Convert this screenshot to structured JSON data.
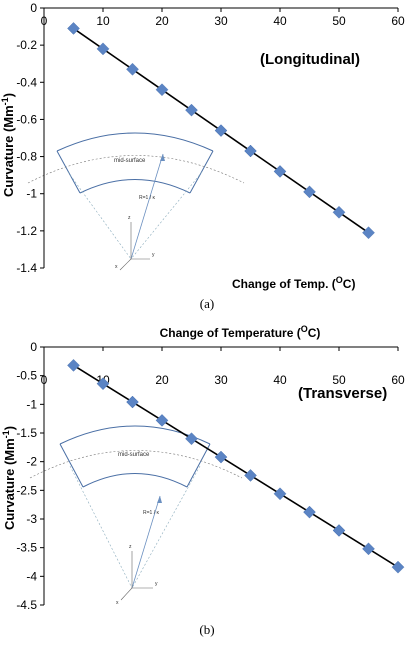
{
  "chart_data": [
    {
      "type": "scatter",
      "title": "",
      "xlabel": "Change of Temp. (",
      "xlabel_sup": "O",
      "xlabel_end": "C)",
      "ylabel": "Curvature (Mm",
      "ylabel_sup": "-1",
      "ylabel_end": ")",
      "annotation": "(Longitudinal)",
      "caption": "(a)",
      "xlim": [
        0,
        60
      ],
      "ylim": [
        -1.4,
        0
      ],
      "x_ticks": [
        0,
        10,
        20,
        30,
        40,
        50,
        60
      ],
      "y_ticks": [
        0,
        -0.2,
        -0.4,
        -0.6,
        -0.8,
        -1,
        -1.2,
        -1.4
      ],
      "x_tick_labels": [
        "0",
        "10",
        "20",
        "30",
        "40",
        "50",
        "60"
      ],
      "y_tick_labels": [
        "0",
        "-0.2",
        "-0.4",
        "-0.6",
        "-0.8",
        "-1",
        "-1.2",
        "-1.4"
      ],
      "x": [
        5,
        10,
        15,
        20,
        25,
        30,
        35,
        40,
        45,
        50,
        55
      ],
      "y": [
        -0.11,
        -0.22,
        -0.33,
        -0.44,
        -0.55,
        -0.66,
        -0.77,
        -0.88,
        -0.99,
        -1.1,
        -1.21
      ],
      "inset": {
        "label_mid": "mid-surface",
        "label_r": "R=1 / κ",
        "axis_z": "z",
        "axis_y": "y",
        "axis_x": "x"
      },
      "marker_color": "#5b84c4",
      "line_color": "#000000"
    },
    {
      "type": "scatter",
      "title": "Change of Temperature (",
      "title_sup": "O",
      "title_end": "C)",
      "xlabel": "",
      "ylabel": "Curvature (Mm",
      "ylabel_sup": "-1",
      "ylabel_end": ")",
      "annotation": "(Transverse)",
      "caption": "(b)",
      "xlim": [
        0,
        60
      ],
      "ylim": [
        -4.5,
        0
      ],
      "x_ticks": [
        0,
        10,
        20,
        30,
        40,
        50,
        60
      ],
      "y_ticks": [
        0,
        -0.5,
        -1,
        -1.5,
        -2,
        -2.5,
        -3,
        -3.5,
        -4,
        -4.5
      ],
      "x_tick_labels": [
        "0",
        "10",
        "20",
        "30",
        "40",
        "50",
        "60"
      ],
      "y_tick_labels": [
        "0",
        "-0.5",
        "-1",
        "-1.5",
        "-2",
        "-2.5",
        "-3",
        "-3.5",
        "-4",
        "-4.5"
      ],
      "x": [
        5,
        10,
        15,
        20,
        25,
        30,
        35,
        40,
        45,
        50,
        55,
        60
      ],
      "y": [
        -0.32,
        -0.64,
        -0.96,
        -1.28,
        -1.6,
        -1.92,
        -2.24,
        -2.56,
        -2.88,
        -3.2,
        -3.52,
        -3.84
      ],
      "inset": {
        "label_mid": "mid-surface",
        "label_r": "R=1 / κ",
        "axis_z": "z",
        "axis_y": "y",
        "axis_x": "x"
      },
      "marker_color": "#5b84c4",
      "line_color": "#000000"
    }
  ]
}
